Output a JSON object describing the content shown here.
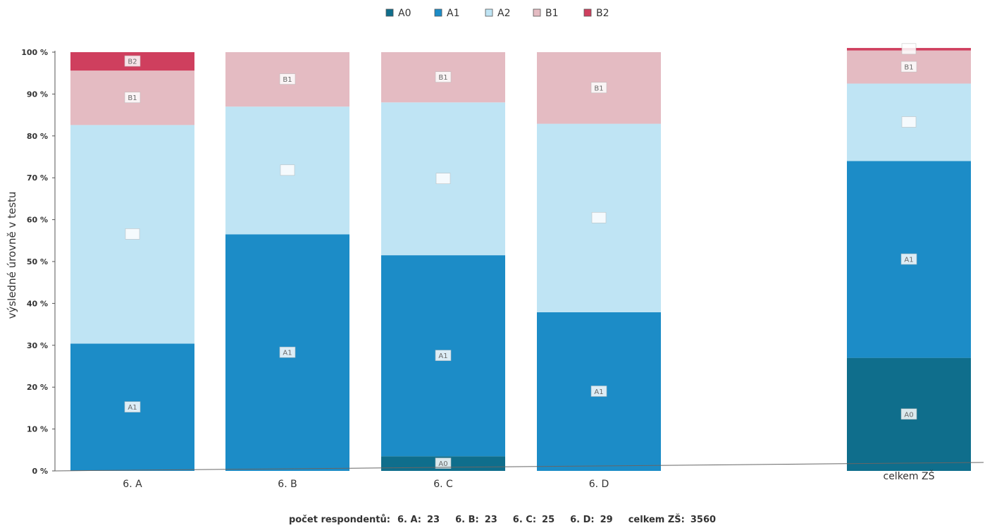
{
  "chart_data": {
    "type": "bar",
    "stacked": true,
    "categories": [
      "6. A",
      "6. B",
      "6. C",
      "6. D",
      "celkem ZŠ"
    ],
    "series": [
      {
        "name": "A0",
        "color": "#0f6e8c",
        "values": [
          0,
          0,
          3.5,
          0,
          27.0
        ]
      },
      {
        "name": "A1",
        "color": "#1c8cc7",
        "values": [
          30.4,
          56.5,
          48.0,
          37.9,
          47.0
        ]
      },
      {
        "name": "A2",
        "color": "#bfe4f4",
        "values": [
          52.2,
          30.5,
          36.5,
          45.0,
          18.5
        ]
      },
      {
        "name": "B1",
        "color": "#e4bbc2",
        "values": [
          13.0,
          13.0,
          12.0,
          17.1,
          7.9
        ]
      },
      {
        "name": "B2",
        "color": "#cf3f5e",
        "values": [
          4.4,
          0,
          0,
          0,
          0.6
        ]
      }
    ],
    "segment_labels": [
      [
        "",
        "A1",
        "",
        "B1",
        "B2"
      ],
      [
        "",
        "A1",
        "",
        "B1",
        ""
      ],
      [
        "A0",
        "A1",
        "",
        "B1",
        ""
      ],
      [
        "",
        "A1",
        "",
        "B1",
        ""
      ],
      [
        "A0",
        "A1",
        "",
        "B1",
        ""
      ]
    ],
    "ylabel": "výsledné úrovně v testu",
    "xlabel": "",
    "ylim": [
      0,
      100
    ],
    "yticks": [
      0,
      10,
      20,
      30,
      40,
      50,
      60,
      70,
      80,
      90,
      100
    ],
    "ytick_labels": [
      "0 %",
      "10 %",
      "20 %",
      "30 %",
      "40 %",
      "50 %",
      "60 %",
      "70 %",
      "80 %",
      "90 %",
      "100 %"
    ],
    "legend_position": "top-center",
    "grid": false
  },
  "footer": {
    "label": "počet respondentů:",
    "items": [
      {
        "name": "6. A:",
        "value": "23"
      },
      {
        "name": "6. B:",
        "value": "23"
      },
      {
        "name": "6. C:",
        "value": "25"
      },
      {
        "name": "6. D:",
        "value": "29"
      },
      {
        "name": "celkem ZŠ:",
        "value": "3560"
      }
    ]
  }
}
